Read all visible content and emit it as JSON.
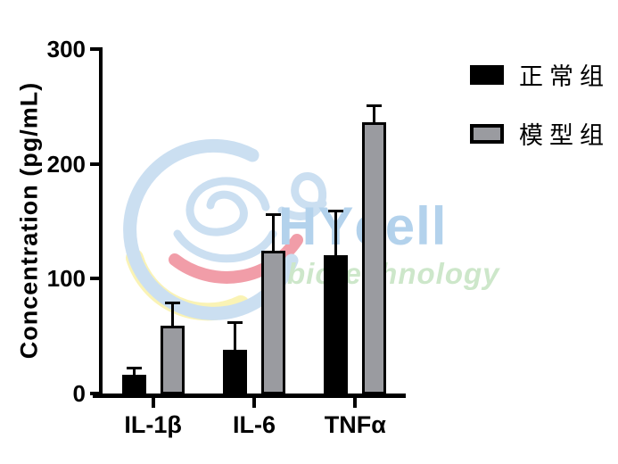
{
  "chart_data": {
    "type": "bar",
    "title": "",
    "xlabel": "",
    "ylabel": "Concentration (pg/mL)",
    "ylim": [
      0,
      300
    ],
    "yticks": [
      0,
      100,
      200,
      300
    ],
    "categories": [
      "IL-1β",
      "IL-6",
      "TNFα"
    ],
    "series": [
      {
        "name": "正常组",
        "color": "#000000",
        "values": [
          17,
          39,
          121
        ],
        "errors": [
          5,
          23,
          38
        ]
      },
      {
        "name": "模型组",
        "color": "#9a9ba0",
        "values": [
          60,
          125,
          237
        ],
        "errors": [
          19,
          31,
          14
        ]
      }
    ],
    "error_bars": "upper",
    "grid": false,
    "legend_position": "top-right"
  },
  "watermark": {
    "brand": "HYcell",
    "tagline": "biotechnology",
    "brand_color": "#b3d2ec",
    "tagline_color": "#cde7ca",
    "logo_blue": "#c6dcf0",
    "logo_red": "#f0939f",
    "logo_yellow": "#faf2ae"
  }
}
